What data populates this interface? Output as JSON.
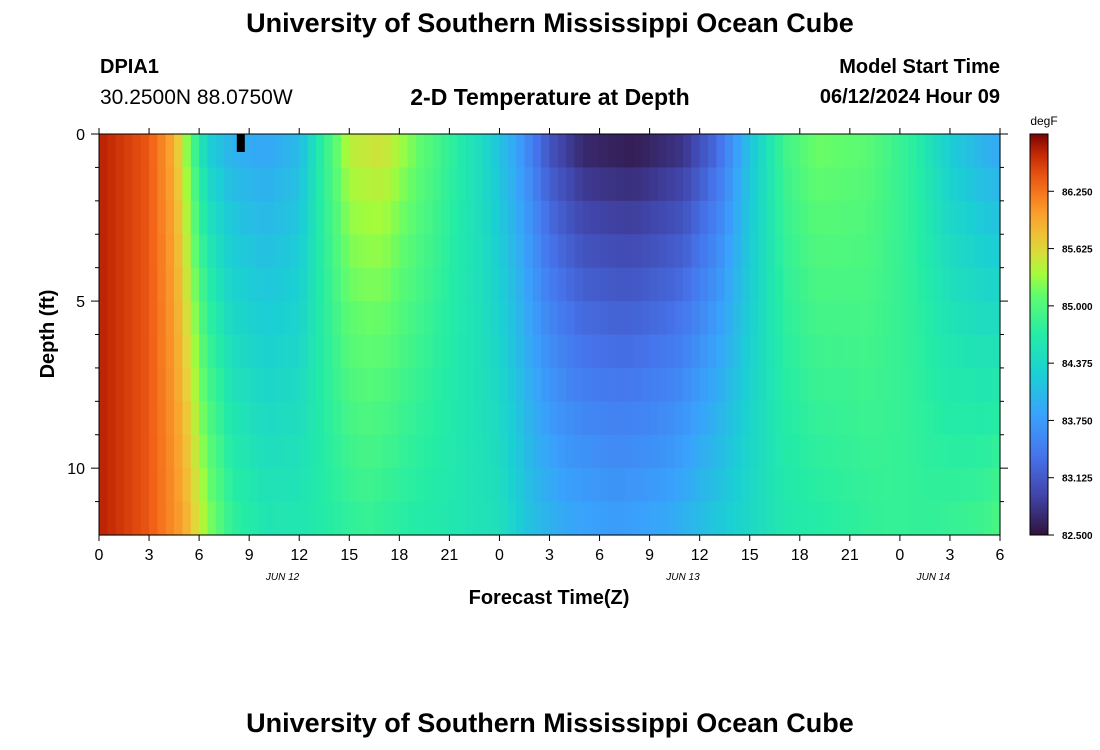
{
  "header": {
    "title": "University of Southern Mississippi Ocean Cube",
    "station_id": "DPIA1",
    "coords": "30.2500N  88.0750W",
    "plot_title": "2-D Temperature at Depth",
    "start_label": "Model Start Time",
    "start_value": "06/12/2024 Hour 09"
  },
  "footer": {
    "title": "University of Southern Mississippi Ocean Cube"
  },
  "chart_data": {
    "type": "heatmap",
    "xlabel": "Forecast Time(Z)",
    "ylabel": "Depth (ft)",
    "x_tick_labels": [
      "0",
      "3",
      "6",
      "9",
      "12",
      "15",
      "18",
      "21",
      "0",
      "3",
      "6",
      "9",
      "12",
      "15",
      "18",
      "21",
      "0",
      "3",
      "6"
    ],
    "date_labels": [
      {
        "text": "JUN 12",
        "hour": 11
      },
      {
        "text": "JUN 13",
        "hour": 35
      },
      {
        "text": "JUN 14",
        "hour": 50
      }
    ],
    "x_range_hours": [
      0,
      54
    ],
    "y_range_ft": [
      0,
      12
    ],
    "y_tick_labels": [
      "0",
      "5",
      "10"
    ],
    "y_ticks": [
      0,
      5,
      10
    ],
    "y_minor_ticks": [
      1,
      2,
      3,
      4,
      6,
      7,
      8,
      9,
      11
    ],
    "current_time_marker_hour": 8.5,
    "colorbar": {
      "unit": "degF",
      "min": 82.5,
      "max": 86.875,
      "tick_labels": [
        "86.250",
        "85.625",
        "85.000",
        "84.375",
        "83.750",
        "83.125",
        "82.500"
      ],
      "ticks": [
        86.25,
        85.625,
        85.0,
        84.375,
        83.75,
        83.125,
        82.5
      ]
    },
    "surface_profile": [
      [
        0,
        86.7
      ],
      [
        3,
        86.4
      ],
      [
        4.5,
        85.9
      ],
      [
        5.5,
        85.0
      ],
      [
        6.5,
        84.2
      ],
      [
        8,
        83.9
      ],
      [
        10,
        83.8
      ],
      [
        12,
        84.0
      ],
      [
        13.5,
        84.8
      ],
      [
        15,
        85.5
      ],
      [
        17,
        85.6
      ],
      [
        19,
        85.2
      ],
      [
        21,
        84.8
      ],
      [
        23,
        84.4
      ],
      [
        25,
        83.8
      ],
      [
        27,
        83.0
      ],
      [
        29,
        82.6
      ],
      [
        32,
        82.5
      ],
      [
        35,
        82.7
      ],
      [
        37,
        83.2
      ],
      [
        39,
        84.1
      ],
      [
        41,
        84.9
      ],
      [
        43,
        85.2
      ],
      [
        46,
        85.1
      ],
      [
        49,
        84.7
      ],
      [
        51,
        84.2
      ],
      [
        53,
        83.9
      ],
      [
        54,
        83.8
      ]
    ],
    "bottom_profile": [
      [
        0,
        86.7
      ],
      [
        3,
        86.4
      ],
      [
        5,
        86.0
      ],
      [
        6.5,
        85.3
      ],
      [
        8,
        84.8
      ],
      [
        10,
        84.6
      ],
      [
        12,
        84.6
      ],
      [
        14,
        84.7
      ],
      [
        16,
        84.8
      ],
      [
        18,
        84.7
      ],
      [
        21,
        84.6
      ],
      [
        24,
        84.5
      ],
      [
        26,
        84.1
      ],
      [
        28,
        83.9
      ],
      [
        31,
        83.8
      ],
      [
        34,
        83.9
      ],
      [
        36,
        84.1
      ],
      [
        38,
        84.3
      ],
      [
        41,
        84.6
      ],
      [
        44,
        84.7
      ],
      [
        47,
        84.8
      ],
      [
        50,
        84.8
      ],
      [
        53,
        84.9
      ],
      [
        54,
        85.0
      ]
    ]
  }
}
